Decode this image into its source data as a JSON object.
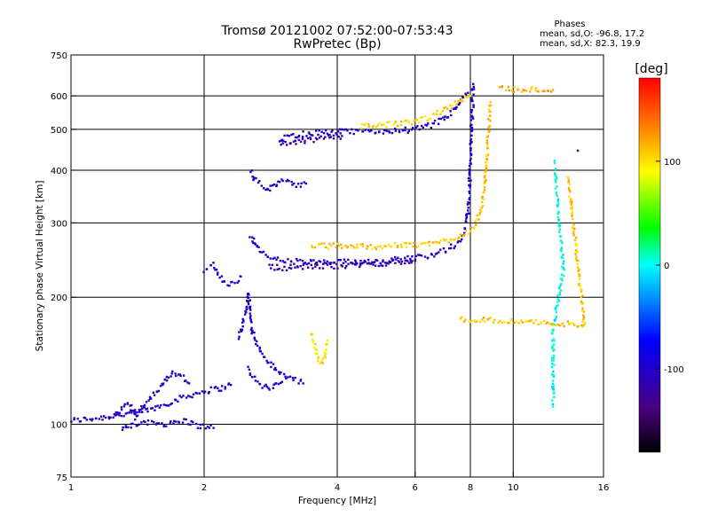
{
  "header": {
    "title_line1": "Tromsø 20121002 07:52:00-07:53:43",
    "title_line2": "RwPretec (Bp)"
  },
  "stats": {
    "heading": "Phases",
    "line_o": "mean, sd,O: -96.8, 17.2",
    "line_x": "mean, sd,X:  82.3, 19.9"
  },
  "chart_data": {
    "type": "scatter",
    "xlabel": "Frequency [MHz]",
    "ylabel": "Stationary phase Virtual Height [km]",
    "x_scale": "log2",
    "y_scale": "log",
    "xlim": [
      1,
      16
    ],
    "ylim": [
      75,
      750
    ],
    "x_ticks": [
      1,
      2,
      4,
      6,
      8,
      10,
      16
    ],
    "x_tick_labels": [
      "1",
      "2",
      "4",
      "6",
      "8",
      "10",
      "16"
    ],
    "y_ticks": [
      75,
      100,
      200,
      300,
      400,
      500,
      600,
      750
    ],
    "y_tick_labels": [
      "75",
      "100",
      "200",
      "300",
      "400",
      "500",
      "600",
      "750"
    ],
    "grid": true,
    "colorbar": {
      "label": "[deg]",
      "range": [
        -180,
        180
      ],
      "ticks": [
        100,
        0,
        -100
      ],
      "tick_labels": [
        "100",
        "0",
        "-100"
      ]
    },
    "traces": [
      {
        "phase": -100,
        "points": [
          [
            1.0,
            102
          ],
          [
            1.1,
            103
          ],
          [
            1.2,
            104
          ],
          [
            1.35,
            106
          ],
          [
            1.5,
            108
          ],
          [
            1.65,
            112
          ],
          [
            1.8,
            116
          ],
          [
            1.95,
            119
          ],
          [
            2.1,
            121
          ],
          [
            2.2,
            122
          ],
          [
            2.3,
            124
          ]
        ]
      },
      {
        "phase": -105,
        "points": [
          [
            1.25,
            105
          ],
          [
            1.35,
            112
          ],
          [
            1.4,
            104
          ],
          [
            1.5,
            115
          ],
          [
            1.6,
            122
          ],
          [
            1.65,
            130
          ],
          [
            1.7,
            133
          ],
          [
            1.78,
            130
          ],
          [
            1.85,
            125
          ]
        ]
      },
      {
        "phase": -98,
        "points": [
          [
            1.3,
            97
          ],
          [
            1.4,
            100
          ],
          [
            1.55,
            101
          ],
          [
            1.65,
            100
          ],
          [
            1.8,
            102
          ],
          [
            1.95,
            99
          ],
          [
            2.1,
            98
          ]
        ]
      },
      {
        "phase": -95,
        "points": [
          [
            2.0,
            232
          ],
          [
            2.1,
            238
          ],
          [
            2.15,
            225
          ],
          [
            2.25,
            215
          ],
          [
            2.35,
            218
          ],
          [
            2.42,
            224
          ]
        ]
      },
      {
        "phase": -95,
        "points": [
          [
            2.4,
            160
          ],
          [
            2.45,
            175
          ],
          [
            2.5,
            190
          ],
          [
            2.52,
            205
          ],
          [
            2.55,
            175
          ],
          [
            2.6,
            160
          ],
          [
            2.7,
            148
          ],
          [
            2.8,
            140
          ],
          [
            2.9,
            135
          ],
          [
            3.05,
            130
          ],
          [
            3.2,
            128
          ],
          [
            3.35,
            125
          ]
        ]
      },
      {
        "phase": -100,
        "points": [
          [
            2.5,
            135
          ],
          [
            2.6,
            128
          ],
          [
            2.7,
            123
          ],
          [
            2.8,
            122
          ],
          [
            2.9,
            124
          ],
          [
            3.0,
            126
          ]
        ]
      },
      {
        "phase": -95,
        "points": [
          [
            2.55,
            280
          ],
          [
            2.6,
            268
          ],
          [
            2.7,
            255
          ],
          [
            2.8,
            250
          ],
          [
            2.9,
            246
          ],
          [
            3.0,
            244
          ],
          [
            3.2,
            243
          ],
          [
            3.5,
            242
          ],
          [
            4.0,
            242
          ],
          [
            4.5,
            243
          ],
          [
            5.0,
            244
          ],
          [
            5.5,
            246
          ],
          [
            6.0,
            248
          ],
          [
            6.5,
            252
          ],
          [
            7.0,
            258
          ],
          [
            7.4,
            266
          ],
          [
            7.7,
            278
          ],
          [
            7.85,
            300
          ],
          [
            7.95,
            350
          ],
          [
            8.0,
            420
          ],
          [
            8.05,
            500
          ],
          [
            8.1,
            580
          ],
          [
            8.12,
            640
          ]
        ]
      },
      {
        "phase": -115,
        "points": [
          [
            2.8,
            236
          ],
          [
            3.0,
            235
          ],
          [
            3.3,
            236
          ],
          [
            3.7,
            237
          ],
          [
            4.2,
            238
          ],
          [
            4.8,
            240
          ],
          [
            5.5,
            242
          ],
          [
            6.0,
            244
          ]
        ]
      },
      {
        "phase": 110,
        "points": [
          [
            3.5,
            264
          ],
          [
            4.0,
            265
          ],
          [
            4.5,
            264
          ],
          [
            5.0,
            264
          ],
          [
            5.5,
            265
          ],
          [
            6.0,
            266
          ],
          [
            6.5,
            268
          ],
          [
            7.0,
            272
          ],
          [
            7.5,
            278
          ],
          [
            8.0,
            288
          ],
          [
            8.3,
            302
          ],
          [
            8.5,
            330
          ],
          [
            8.65,
            380
          ],
          [
            8.75,
            450
          ],
          [
            8.82,
            520
          ],
          [
            8.88,
            580
          ]
        ]
      },
      {
        "phase": -100,
        "points": [
          [
            2.95,
            470
          ],
          [
            3.0,
            475
          ],
          [
            3.2,
            484
          ],
          [
            3.5,
            490
          ],
          [
            4.0,
            493
          ],
          [
            4.5,
            493
          ],
          [
            5.0,
            494
          ],
          [
            5.5,
            496
          ],
          [
            6.0,
            500
          ],
          [
            6.5,
            510
          ],
          [
            7.0,
            530
          ],
          [
            7.4,
            560
          ],
          [
            7.7,
            595
          ],
          [
            7.9,
            610
          ]
        ]
      },
      {
        "phase": -118,
        "points": [
          [
            3.0,
            458
          ],
          [
            3.2,
            465
          ],
          [
            3.5,
            472
          ],
          [
            3.8,
            478
          ],
          [
            4.1,
            482
          ]
        ]
      },
      {
        "phase": 105,
        "points": [
          [
            4.5,
            508
          ],
          [
            5.0,
            512
          ],
          [
            5.5,
            515
          ],
          [
            6.0,
            520
          ],
          [
            6.5,
            535
          ],
          [
            7.0,
            555
          ],
          [
            7.5,
            580
          ],
          [
            8.0,
            600
          ]
        ]
      },
      {
        "phase": -100,
        "points": [
          [
            2.55,
            400
          ],
          [
            2.6,
            380
          ],
          [
            2.7,
            370
          ],
          [
            2.8,
            360
          ],
          [
            2.9,
            372
          ],
          [
            3.0,
            378
          ],
          [
            3.2,
            368
          ],
          [
            3.4,
            372
          ]
        ]
      },
      {
        "phase": 100,
        "points": [
          [
            3.5,
            165
          ],
          [
            3.55,
            155
          ],
          [
            3.6,
            145
          ],
          [
            3.65,
            140
          ],
          [
            3.7,
            140
          ],
          [
            3.75,
            145
          ],
          [
            3.8,
            158
          ]
        ]
      },
      {
        "phase": 120,
        "points": [
          [
            9.3,
            625
          ],
          [
            10.0,
            622
          ],
          [
            12.3,
            620
          ]
        ]
      },
      {
        "phase": 0,
        "points": [
          [
            12.4,
            415
          ],
          [
            13.0,
            230
          ],
          [
            12.3,
            170
          ],
          [
            12.3,
            110
          ]
        ]
      },
      {
        "phase": -135,
        "points": [
          [
            14.0,
            445
          ]
        ]
      },
      {
        "phase": 110,
        "points": [
          [
            13.3,
            385
          ],
          [
            14.5,
            172
          ],
          [
            7.6,
            178
          ]
        ]
      }
    ]
  }
}
